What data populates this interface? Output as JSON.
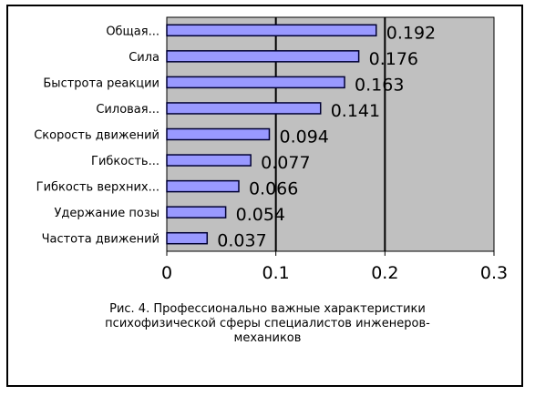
{
  "chart_data": {
    "type": "bar",
    "orientation": "horizontal",
    "categories": [
      "Общая...",
      "Сила",
      "Быстрота реакции",
      "Силовая...",
      "Скорость движений",
      "Гибкость...",
      "Гибкость верхних...",
      "Удержание позы",
      "Частота движений"
    ],
    "values": [
      0.192,
      0.176,
      0.163,
      0.141,
      0.094,
      0.077,
      0.066,
      0.054,
      0.037
    ],
    "value_labels": [
      "0.192",
      "0.176",
      "0.163",
      "0.141",
      "0.094",
      "0.077",
      "0.066",
      "0.054",
      "0.037"
    ],
    "xlim": [
      0,
      0.3
    ],
    "x_ticks": [
      0,
      0.1,
      0.2,
      0.3
    ],
    "x_tick_labels": [
      "0",
      "0.1",
      "0.2",
      "0.3"
    ],
    "grid": "vertical",
    "legend": "none",
    "colors": {
      "bar_fill": "#9999ff",
      "bar_stroke": "#000033",
      "plot_background": "#c0c0c0"
    }
  },
  "caption": {
    "lines": [
      "Рис. 4. Профессионально важные характеристики",
      "психофизической сферы специалистов инженеров-",
      "механиков"
    ]
  }
}
